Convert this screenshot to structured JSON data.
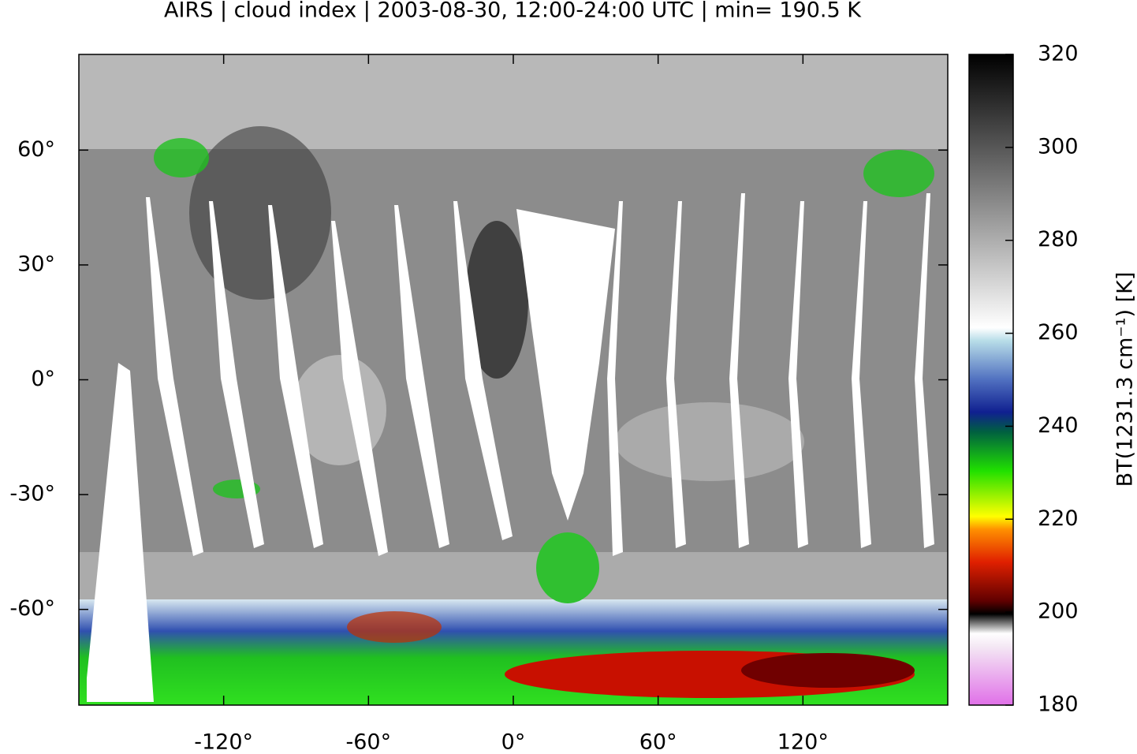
{
  "chart_data": {
    "type": "map",
    "title": "AIRS | cloud index | 2003-08-30, 12:00-24:00 UTC | min= 190.5 K",
    "xlim": [
      -180,
      180
    ],
    "xticks": [
      {
        "value": -120,
        "label": "-120°"
      },
      {
        "value": -60,
        "label": "-60°"
      },
      {
        "value": 0,
        "label": "0°"
      },
      {
        "value": 60,
        "label": "60°"
      },
      {
        "value": 120,
        "label": "120°"
      }
    ],
    "ylim": [
      -85,
      85
    ],
    "yticks": [
      {
        "value": -60,
        "label": "-60°"
      },
      {
        "value": -30,
        "label": "-30°"
      },
      {
        "value": 0,
        "label": "0°"
      },
      {
        "value": 30,
        "label": "30°"
      },
      {
        "value": 60,
        "label": "60°"
      }
    ],
    "colorbar": {
      "label": "BT(1231.3 cm⁻¹) [K]",
      "zlim": [
        180,
        320
      ],
      "zticks": [
        180,
        200,
        220,
        240,
        260,
        280,
        300,
        320
      ]
    }
  }
}
